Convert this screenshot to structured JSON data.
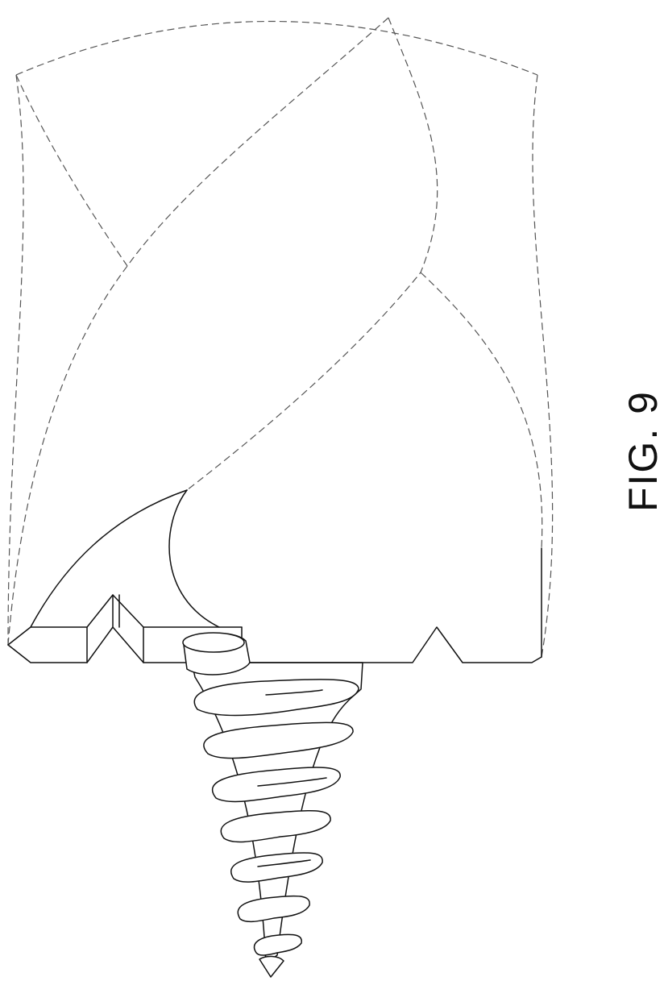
{
  "figure": {
    "label": "FIG. 9"
  }
}
